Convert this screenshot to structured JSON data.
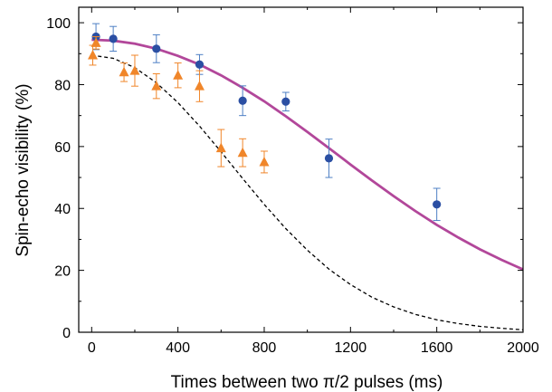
{
  "chart_data": {
    "type": "scatter",
    "xlabel": "Times between two π/2 pulses (ms)",
    "ylabel": "Spin-echo visibility (%)",
    "xlim": [
      -60,
      2000
    ],
    "ylim": [
      0,
      105
    ],
    "x_ticks": [
      "0",
      "400",
      "800",
      "1200",
      "1600",
      "2000"
    ],
    "y_ticks": [
      "0",
      "20",
      "40",
      "60",
      "80",
      "100"
    ],
    "x_tick_values": [
      0,
      400,
      800,
      1200,
      1600,
      2000
    ],
    "y_tick_values": [
      0,
      20,
      40,
      60,
      80,
      100
    ],
    "grid": false,
    "series": [
      {
        "marker": "circle",
        "color": "#2b4fa3",
        "error_color": "#4d7fc4",
        "x": [
          20,
          100,
          300,
          500,
          700,
          900,
          1100,
          1600
        ],
        "y": [
          95.5,
          94.8,
          91.6,
          86.5,
          74.8,
          74.5,
          56.2,
          41.3
        ],
        "err": [
          4.2,
          4.0,
          4.5,
          3.2,
          4.8,
          3.0,
          6.2,
          5.2
        ]
      },
      {
        "marker": "triangle",
        "color": "#f0862a",
        "error_color": "#f0862a",
        "x": [
          5,
          20,
          150,
          200,
          300,
          400,
          500,
          600,
          700,
          800
        ],
        "y": [
          89.5,
          93.5,
          84.0,
          84.5,
          79.5,
          83.0,
          79.5,
          59.5,
          58.0,
          55.0
        ],
        "err": [
          3.2,
          2.0,
          3.0,
          5.0,
          4.0,
          4.0,
          5.0,
          6.0,
          4.5,
          3.5
        ]
      }
    ],
    "fits": [
      {
        "style": "solid",
        "color": "#b2479a",
        "x": [
          0,
          100,
          200,
          300,
          400,
          500,
          600,
          700,
          800,
          900,
          1000,
          1100,
          1200,
          1300,
          1400,
          1500,
          1600,
          1700,
          1800,
          1900,
          2000
        ],
        "y": [
          94.5,
          94.2,
          93.2,
          91.6,
          89.3,
          86.5,
          83.0,
          79.0,
          74.6,
          69.8,
          64.7,
          59.5,
          54.2,
          49.0,
          44.0,
          39.2,
          34.7,
          30.6,
          26.8,
          23.4,
          20.3
        ]
      },
      {
        "style": "dashed",
        "color": "#000000",
        "x": [
          0,
          100,
          200,
          300,
          400,
          500,
          600,
          700,
          800,
          900,
          1000,
          1100,
          1200,
          1300,
          1400,
          1500,
          1600,
          1700,
          1800,
          1900,
          2000
        ],
        "y": [
          89.5,
          88.5,
          85.5,
          80.6,
          74.2,
          66.6,
          58.3,
          49.7,
          41.3,
          33.5,
          26.5,
          20.4,
          15.4,
          11.3,
          8.2,
          5.8,
          4.0,
          2.8,
          1.9,
          1.3,
          0.8
        ]
      }
    ]
  }
}
